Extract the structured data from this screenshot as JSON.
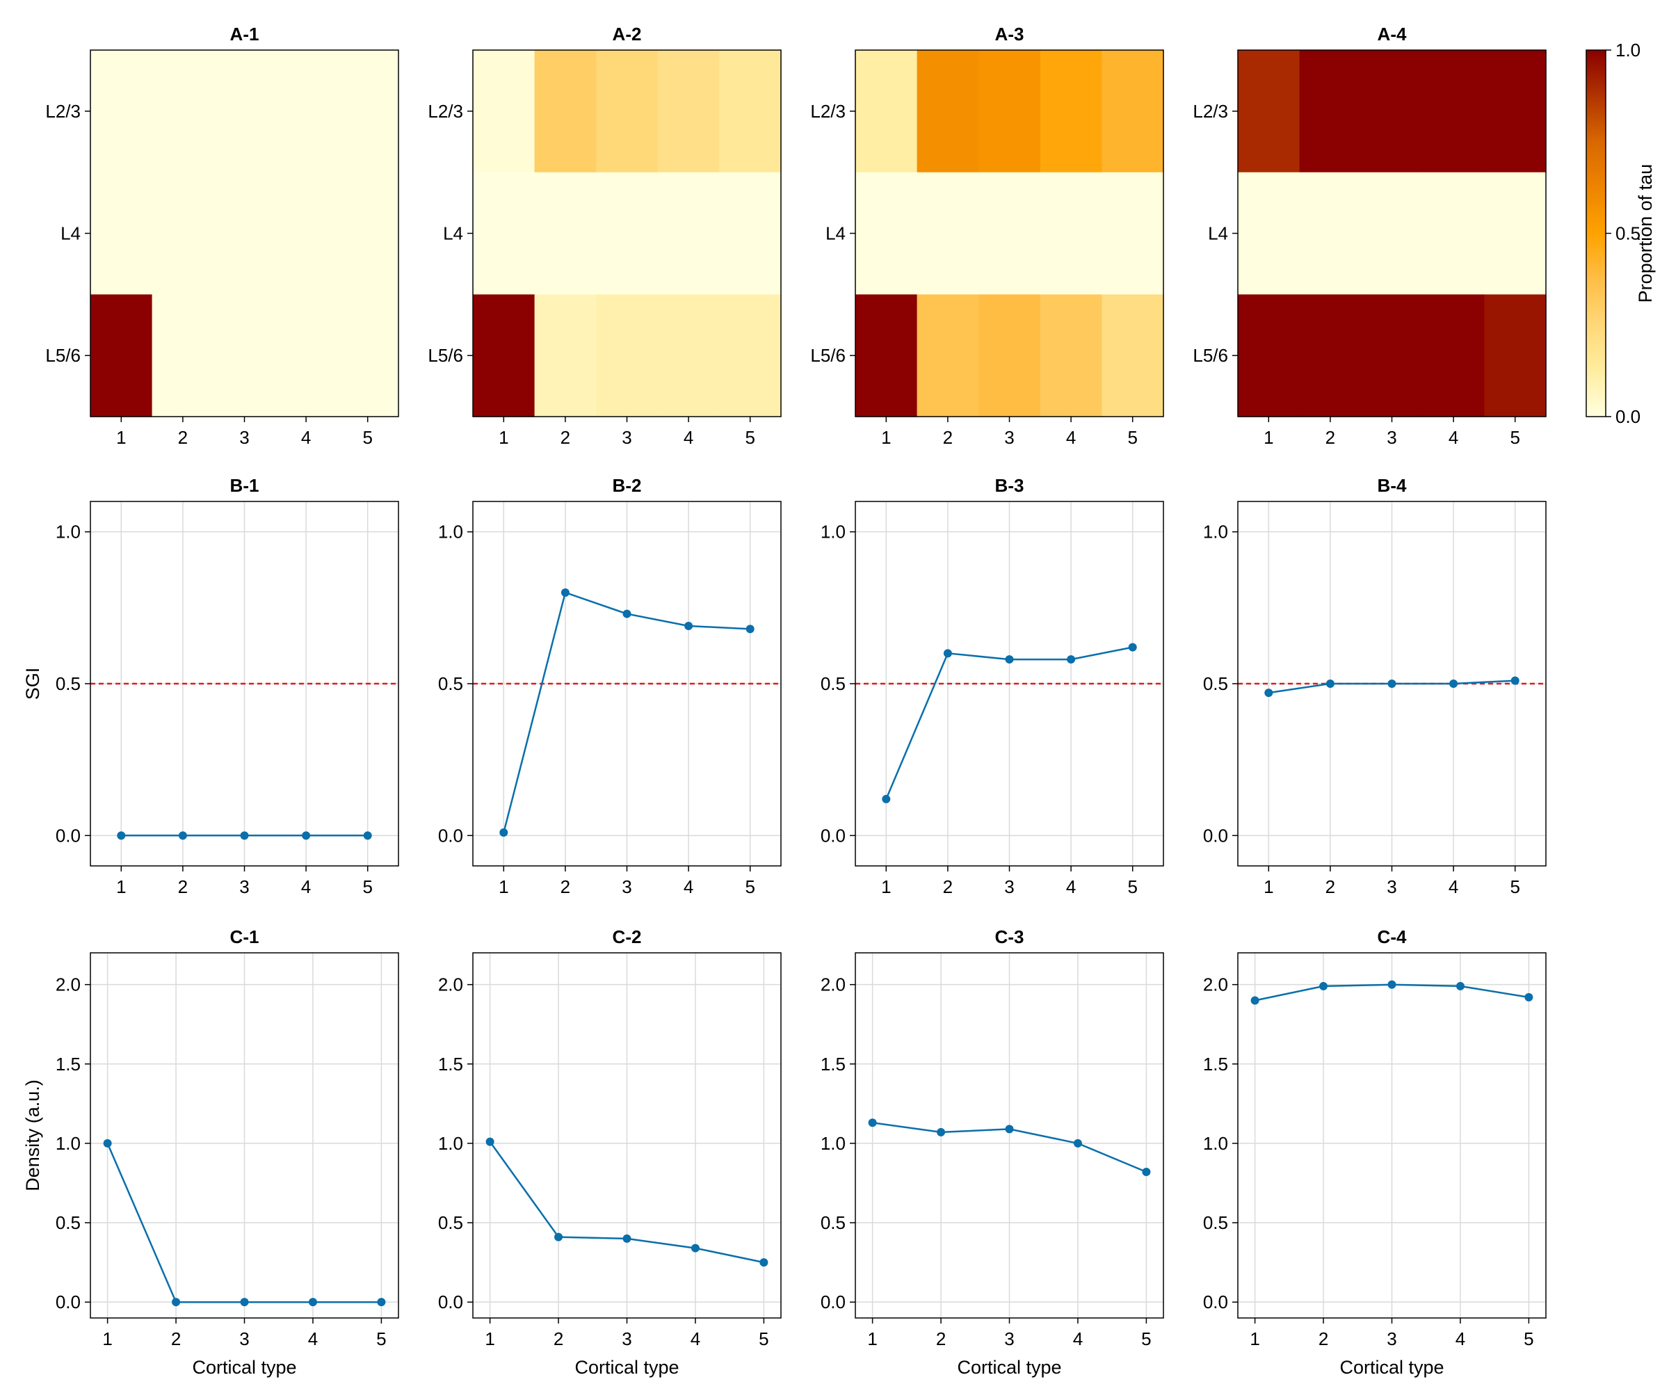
{
  "colors": {
    "line": "#0a6fab",
    "reference": "#e01b1b",
    "grid": "#dadada",
    "colormap": [
      "#ffffe0",
      "#ffeda0",
      "#ffd878",
      "#ffbe46",
      "#ffa200",
      "#ee8400",
      "#d86800",
      "#b03400",
      "#8b0000"
    ]
  },
  "colorbar": {
    "label": "Proportion of tau",
    "ticks": [
      "0.0",
      "0.5",
      "1.0"
    ],
    "range": [
      0,
      1
    ]
  },
  "chart_data": [
    {
      "type": "heatmap",
      "title": "A-1",
      "x_categories": [
        "1",
        "2",
        "3",
        "4",
        "5"
      ],
      "y_categories": [
        "L2/3",
        "L4",
        "L5/6"
      ],
      "values": [
        [
          0,
          0,
          0,
          0,
          0
        ],
        [
          0,
          0,
          0,
          0,
          0
        ],
        [
          1.0,
          0,
          0,
          0,
          0
        ]
      ],
      "color_range": [
        0,
        1
      ]
    },
    {
      "type": "heatmap",
      "title": "A-2",
      "x_categories": [
        "1",
        "2",
        "3",
        "4",
        "5"
      ],
      "y_categories": [
        "L2/3",
        "L4",
        "L5/6"
      ],
      "values": [
        [
          0.02,
          0.3,
          0.25,
          0.2,
          0.15
        ],
        [
          0,
          0,
          0,
          0,
          0
        ],
        [
          1.0,
          0.08,
          0.1,
          0.1,
          0.1
        ]
      ],
      "color_range": [
        0,
        1
      ]
    },
    {
      "type": "heatmap",
      "title": "A-3",
      "x_categories": [
        "1",
        "2",
        "3",
        "4",
        "5"
      ],
      "y_categories": [
        "L2/3",
        "L4",
        "L5/6"
      ],
      "values": [
        [
          0.12,
          0.58,
          0.56,
          0.48,
          0.42
        ],
        [
          0,
          0,
          0,
          0,
          0
        ],
        [
          1.0,
          0.35,
          0.38,
          0.32,
          0.22
        ]
      ],
      "color_range": [
        0,
        1
      ]
    },
    {
      "type": "heatmap",
      "title": "A-4",
      "x_categories": [
        "1",
        "2",
        "3",
        "4",
        "5"
      ],
      "y_categories": [
        "L2/3",
        "L4",
        "L5/6"
      ],
      "values": [
        [
          0.9,
          1.0,
          1.0,
          1.0,
          1.0
        ],
        [
          0,
          0,
          0,
          0,
          0
        ],
        [
          1.0,
          1.0,
          1.0,
          1.0,
          0.95
        ]
      ],
      "color_range": [
        0,
        1
      ]
    },
    {
      "type": "line",
      "title": "B-1",
      "ylabel": "SGI",
      "x": [
        1,
        2,
        3,
        4,
        5
      ],
      "y": [
        0.0,
        0.0,
        0.0,
        0.0,
        0.0
      ],
      "ylim": [
        -0.1,
        1.1
      ],
      "yticks": [
        "0.0",
        "0.5",
        "1.0"
      ],
      "reference_line": 0.5
    },
    {
      "type": "line",
      "title": "B-2",
      "x": [
        1,
        2,
        3,
        4,
        5
      ],
      "y": [
        0.01,
        0.8,
        0.73,
        0.69,
        0.68
      ],
      "ylim": [
        -0.1,
        1.1
      ],
      "yticks": [
        "0.0",
        "0.5",
        "1.0"
      ],
      "reference_line": 0.5
    },
    {
      "type": "line",
      "title": "B-3",
      "x": [
        1,
        2,
        3,
        4,
        5
      ],
      "y": [
        0.12,
        0.6,
        0.58,
        0.58,
        0.62
      ],
      "ylim": [
        -0.1,
        1.1
      ],
      "yticks": [
        "0.0",
        "0.5",
        "1.0"
      ],
      "reference_line": 0.5
    },
    {
      "type": "line",
      "title": "B-4",
      "x": [
        1,
        2,
        3,
        4,
        5
      ],
      "y": [
        0.47,
        0.5,
        0.5,
        0.5,
        0.51
      ],
      "ylim": [
        -0.1,
        1.1
      ],
      "yticks": [
        "0.0",
        "0.5",
        "1.0"
      ],
      "reference_line": 0.5
    },
    {
      "type": "line",
      "title": "C-1",
      "xlabel": "Cortical type",
      "ylabel": "Density (a.u.)",
      "x": [
        1,
        2,
        3,
        4,
        5
      ],
      "y": [
        1.0,
        0.0,
        0.0,
        0.0,
        0.0
      ],
      "ylim": [
        -0.1,
        2.2
      ],
      "yticks": [
        "0.0",
        "0.5",
        "1.0",
        "1.5",
        "2.0"
      ]
    },
    {
      "type": "line",
      "title": "C-2",
      "xlabel": "Cortical type",
      "x": [
        1,
        2,
        3,
        4,
        5
      ],
      "y": [
        1.01,
        0.41,
        0.4,
        0.34,
        0.25
      ],
      "ylim": [
        -0.1,
        2.2
      ],
      "yticks": [
        "0.0",
        "0.5",
        "1.0",
        "1.5",
        "2.0"
      ]
    },
    {
      "type": "line",
      "title": "C-3",
      "xlabel": "Cortical type",
      "x": [
        1,
        2,
        3,
        4,
        5
      ],
      "y": [
        1.13,
        1.07,
        1.09,
        1.0,
        0.82
      ],
      "ylim": [
        -0.1,
        2.2
      ],
      "yticks": [
        "0.0",
        "0.5",
        "1.0",
        "1.5",
        "2.0"
      ]
    },
    {
      "type": "line",
      "title": "C-4",
      "xlabel": "Cortical type",
      "x": [
        1,
        2,
        3,
        4,
        5
      ],
      "y": [
        1.9,
        1.99,
        2.0,
        1.99,
        1.92
      ],
      "ylim": [
        -0.1,
        2.2
      ],
      "yticks": [
        "0.0",
        "0.5",
        "1.0",
        "1.5",
        "2.0"
      ]
    }
  ]
}
